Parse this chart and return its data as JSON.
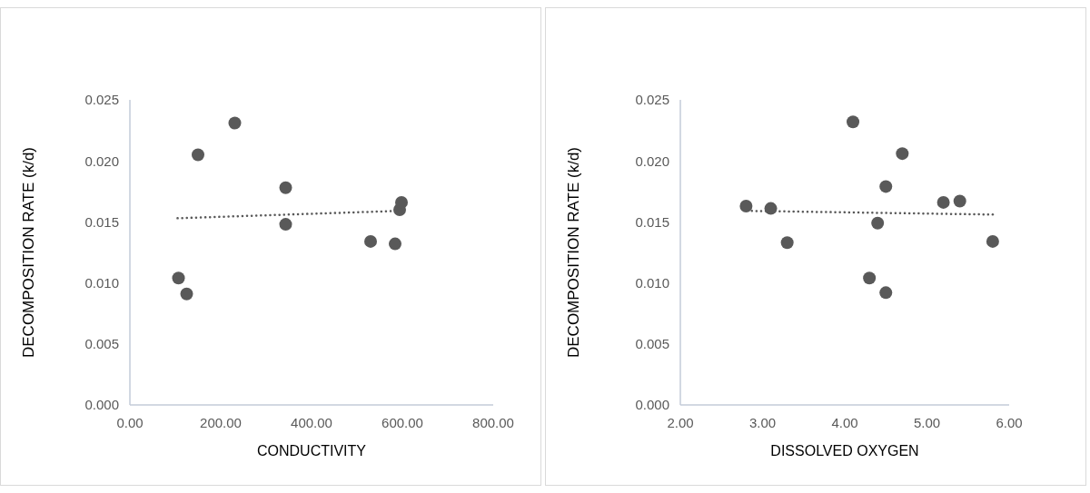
{
  "chart_data": [
    {
      "type": "scatter",
      "xlabel": "CONDUCTIVITY",
      "ylabel": "DECOMPOSITION RATE (k/d)",
      "xlim": [
        0,
        800
      ],
      "xticks": [
        {
          "value": 0,
          "label": "0.00"
        },
        {
          "value": 200,
          "label": "200.00"
        },
        {
          "value": 400,
          "label": "400.00"
        },
        {
          "value": 600,
          "label": "600.00"
        },
        {
          "value": 800,
          "label": "800.00"
        }
      ],
      "ylim": [
        0,
        0.025
      ],
      "yticks": [
        {
          "value": 0,
          "label": "0.000"
        },
        {
          "value": 0.005,
          "label": "0.005"
        },
        {
          "value": 0.01,
          "label": "0.010"
        },
        {
          "value": 0.015,
          "label": "0.015"
        },
        {
          "value": 0.02,
          "label": "0.020"
        },
        {
          "value": 0.025,
          "label": "0.025"
        }
      ],
      "series": [
        {
          "marker": "circle",
          "color": "#595959",
          "x": [
            107,
            125,
            150,
            231,
            343,
            343,
            530,
            584,
            587,
            594,
            598
          ],
          "values": [
            0.0104,
            0.0091,
            0.0205,
            0.0231,
            0.0178,
            0.0148,
            0.0134,
            0.0132,
            null,
            0.016,
            0.0166
          ]
        },
        {
          "type": "line",
          "color": "#595959",
          "line_style": "dotted",
          "x": [
            105,
            589
          ],
          "values": [
            0.0153,
            0.0159
          ]
        }
      ]
    },
    {
      "type": "scatter",
      "xlabel": "DISSOLVED OXYGEN",
      "ylabel": "DECOMPOSITION RATE (k/d)",
      "xlim": [
        2,
        6
      ],
      "xticks": [
        {
          "value": 2,
          "label": "2.00"
        },
        {
          "value": 3,
          "label": "3.00"
        },
        {
          "value": 4,
          "label": "4.00"
        },
        {
          "value": 5,
          "label": "5.00"
        },
        {
          "value": 6,
          "label": "6.00"
        }
      ],
      "ylim": [
        0,
        0.025
      ],
      "yticks": [
        {
          "value": 0,
          "label": "0.000"
        },
        {
          "value": 0.005,
          "label": "0.005"
        },
        {
          "value": 0.01,
          "label": "0.010"
        },
        {
          "value": 0.015,
          "label": "0.015"
        },
        {
          "value": 0.02,
          "label": "0.020"
        },
        {
          "value": 0.025,
          "label": "0.025"
        }
      ],
      "series": [
        {
          "marker": "circle",
          "color": "#595959",
          "x": [
            2.8,
            3.1,
            3.3,
            4.1,
            4.3,
            4.4,
            4.5,
            4.5,
            4.7,
            5.2,
            5.4,
            5.8
          ],
          "values": [
            0.0163,
            0.0161,
            0.0133,
            0.0232,
            0.0104,
            0.0149,
            0.0179,
            0.0092,
            0.0206,
            0.0166,
            0.0167,
            0.0134
          ]
        },
        {
          "type": "line",
          "color": "#595959",
          "line_style": "dotted",
          "x": [
            2.87,
            5.8
          ],
          "values": [
            0.0159,
            0.0156
          ]
        }
      ]
    }
  ]
}
